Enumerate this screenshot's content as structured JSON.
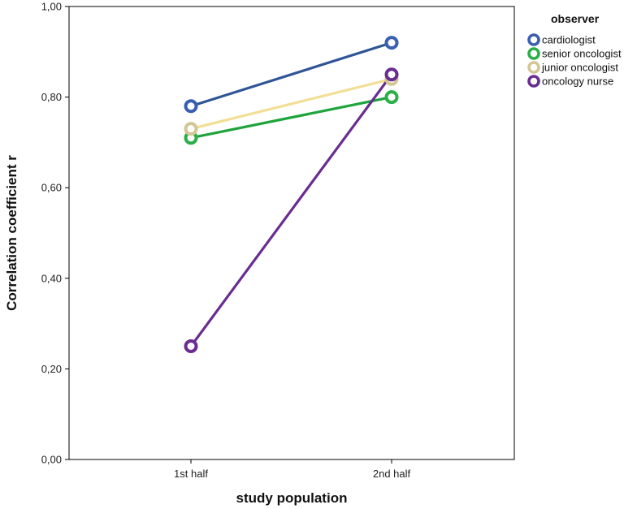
{
  "chart_data": {
    "type": "line",
    "title": "",
    "xlabel": "study population",
    "ylabel": "Correlation coefficient r",
    "categories": [
      "1st half",
      "2nd half"
    ],
    "ylim": [
      0,
      1
    ],
    "y_ticks": [
      0,
      0.2,
      0.4,
      0.6,
      0.8,
      1.0
    ],
    "y_tick_labels": [
      "0,00",
      "0,20",
      "0,40",
      "0,60",
      "0,80",
      "1,00"
    ],
    "grid": false,
    "legend_title": "observer",
    "legend_position": "top-right outside",
    "series": [
      {
        "name": "cardiologist",
        "values": [
          0.78,
          0.92
        ],
        "color": "#2f5597",
        "marker_color": "#3a5fb0"
      },
      {
        "name": "senior oncologist",
        "values": [
          0.71,
          0.8
        ],
        "color": "#1fa43c",
        "marker_color": "#2cae48"
      },
      {
        "name": "junior oncologist",
        "values": [
          0.73,
          0.84
        ],
        "color": "#f2df96",
        "marker_color": "#d2c795"
      },
      {
        "name": "oncology nurse",
        "values": [
          0.25,
          0.85
        ],
        "color": "#6a2c90",
        "marker_color": "#6a2c90"
      }
    ]
  }
}
